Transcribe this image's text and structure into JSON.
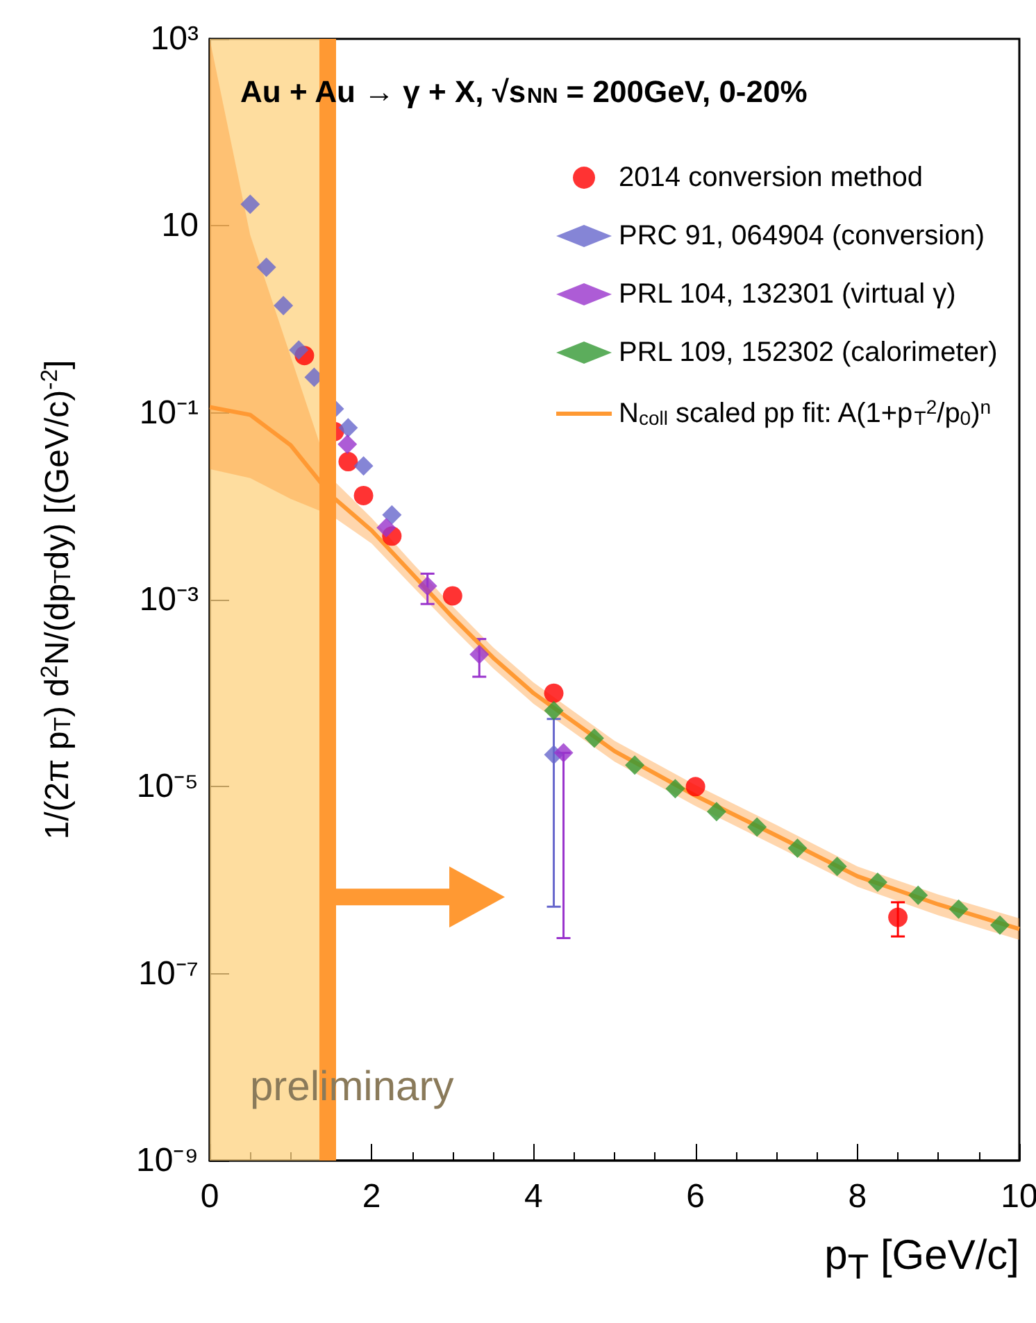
{
  "chart_data": {
    "type": "scatter",
    "title": "Au + Au → γ + X, √s$_{NN}$ = 200GeV, 0-20%",
    "xlabel": "p$_{T}$ [GeV/c]",
    "ylabel": "1/(2π p$_{T}$) d$^{2}$N/(dp$_{T}$dy) [(GeV/c)$^{-2}$]",
    "log": "y",
    "xlim": [
      0,
      10
    ],
    "xticks": [
      0,
      2,
      4,
      6,
      8,
      10
    ],
    "ylim": [
      1e-09,
      1000
    ],
    "yticks": [
      {
        "value": 1000,
        "label": "10³"
      },
      10,
      {
        "value": 0.1,
        "label": "10⁻¹"
      },
      {
        "value": 0.001,
        "label": "10⁻³"
      },
      {
        "value": 1e-05,
        "label": "10⁻⁵"
      },
      {
        "value": 1e-07,
        "label": "10⁻⁷"
      },
      {
        "value": 1e-09,
        "label": "10⁻⁹"
      }
    ],
    "grid": false,
    "legend": "top right",
    "series": [
      {
        "name": "2014 conversion method",
        "color": "#ff0000",
        "marker": "circle",
        "x": [
          1.17,
          1.54,
          1.71,
          1.9,
          2.25,
          3.0,
          4.25,
          6.0,
          8.5
        ],
        "values": [
          0.41,
          0.063,
          0.03,
          0.013,
          0.0048,
          0.0011,
          0.0001,
          1e-05,
          4e-07
        ],
        "errors": [
          null,
          null,
          null,
          null,
          null,
          null,
          null,
          null,
          [
            2.5e-07,
            5.8e-07
          ]
        ]
      },
      {
        "name": "PRC 91, 064904 (conversion)",
        "color": "#6666cc",
        "marker": "diamond",
        "x": [
          0.5,
          0.7,
          0.91,
          1.1,
          1.29,
          1.54,
          1.71,
          1.9,
          2.25,
          4.25
        ],
        "values": [
          17,
          3.6,
          1.4,
          0.47,
          0.24,
          0.11,
          0.069,
          0.027,
          0.0081,
          2.2e-05
        ],
        "errors": [
          null,
          null,
          null,
          null,
          null,
          null,
          null,
          null,
          null,
          [
            5.2e-07,
            5.3e-05
          ]
        ]
      },
      {
        "name": "PRL 104, 132301 (virtual γ)",
        "color": "#9933cc",
        "marker": "diamond",
        "x": [
          1.7,
          2.18,
          2.69,
          3.33,
          4.37
        ],
        "values": [
          0.046,
          0.0059,
          0.0014,
          0.00026,
          2.3e-05
        ],
        "errors": [
          null,
          null,
          [
            0.0009,
            0.0019
          ],
          [
            0.00015,
            0.00038
          ],
          [
            2.4e-07,
            2.3e-05
          ]
        ]
      },
      {
        "name": "PRL 109, 152302 (calorimeter)",
        "color": "#339933",
        "marker": "diamond",
        "x": [
          4.25,
          4.75,
          5.25,
          5.75,
          6.26,
          6.76,
          7.26,
          7.75,
          8.25,
          8.75,
          9.25,
          9.76
        ],
        "values": [
          6.5e-05,
          3.3e-05,
          1.7e-05,
          9.5e-06,
          5.4e-06,
          3.7e-06,
          2.2e-06,
          1.4e-06,
          9.5e-07,
          6.9e-07,
          4.9e-07,
          3.3e-07
        ]
      },
      {
        "name": "N$_{coll}$ scaled pp fit: A(1+p$_{T}$$^{2}$/p$_{0}$)$^{n}$",
        "type": "line",
        "color": "#ff9933",
        "marker": "none",
        "x": [
          0,
          0.5,
          1,
          1.5,
          2,
          2.5,
          3,
          3.5,
          4,
          5,
          6,
          7,
          8,
          9,
          10
        ],
        "values": [
          0.115,
          0.095,
          0.045,
          0.013,
          0.0055,
          0.0019,
          0.00065,
          0.00024,
          0.0001,
          2.4e-05,
          8e-06,
          3e-06,
          1.1e-06,
          5.5e-07,
          3e-07
        ],
        "upper": [
          1000,
          8,
          0.4,
          0.02,
          0.0075,
          0.0025,
          0.00085,
          0.00031,
          0.00013,
          3.1e-05,
          1.04e-05,
          3.9e-06,
          1.4e-06,
          7e-07,
          3.9e-07
        ],
        "lower": [
          0.025,
          0.02,
          0.012,
          0.008,
          0.004,
          0.0014,
          0.0005,
          0.000185,
          7.7e-05,
          1.85e-05,
          6.2e-06,
          2.3e-06,
          8.5e-07,
          4.2e-07,
          2.3e-07
        ]
      }
    ],
    "bands": [
      {
        "axis": "x",
        "from": 0,
        "to": 1.45,
        "color": "#fdd27f"
      }
    ],
    "ref_lines": [
      {
        "axis": "x",
        "value": 1.45,
        "color": "#ff9933"
      }
    ],
    "annotations": [
      "preliminary"
    ]
  }
}
